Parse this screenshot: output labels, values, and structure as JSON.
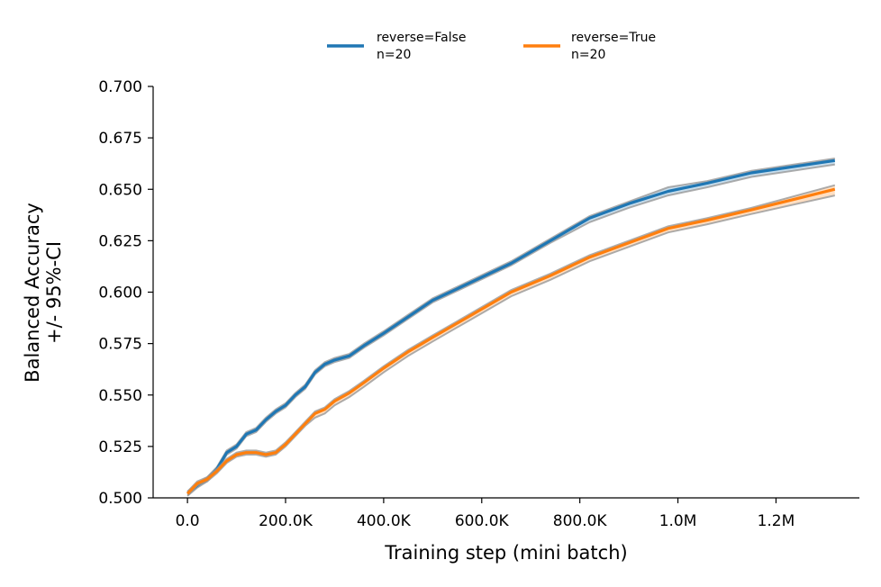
{
  "chart_data": {
    "type": "line",
    "xlabel": "Training step (mini batch)",
    "ylabel_lines": [
      "Balanced Accuracy",
      "+/- 95%-CI"
    ],
    "xlim": [
      -70000,
      1370000
    ],
    "ylim": [
      0.5,
      0.7
    ],
    "xticks": [
      0,
      200000,
      400000,
      600000,
      800000,
      1000000,
      1200000
    ],
    "xtick_labels": [
      "0.0",
      "200.0K",
      "400.0K",
      "600.0K",
      "800.0K",
      "1.0M",
      "1.2M"
    ],
    "yticks": [
      0.5,
      0.525,
      0.55,
      0.575,
      0.6,
      0.625,
      0.65,
      0.675,
      0.7
    ],
    "ytick_labels": [
      "0.500",
      "0.525",
      "0.550",
      "0.575",
      "0.600",
      "0.625",
      "0.650",
      "0.675",
      "0.700"
    ],
    "ci_color": "#999999",
    "legend": {
      "position": "top-center",
      "columns": 2
    },
    "series": [
      {
        "name": "reverse=False",
        "legend_label_lines": [
          "reverse=False",
          "n=20"
        ],
        "color": "#1f77b4",
        "x": [
          0,
          20000,
          40000,
          60000,
          80000,
          100000,
          120000,
          140000,
          160000,
          180000,
          200000,
          220000,
          240000,
          260000,
          280000,
          300000,
          330000,
          360000,
          400000,
          450000,
          500000,
          580000,
          660000,
          740000,
          820000,
          900000,
          980000,
          1060000,
          1150000,
          1320000
        ],
        "values": [
          0.502,
          0.506,
          0.509,
          0.514,
          0.522,
          0.525,
          0.531,
          0.533,
          0.538,
          0.542,
          0.545,
          0.55,
          0.554,
          0.561,
          0.565,
          0.567,
          0.569,
          0.574,
          0.58,
          0.588,
          0.596,
          0.605,
          0.614,
          0.625,
          0.636,
          0.643,
          0.649,
          0.653,
          0.658,
          0.664
        ],
        "ci_low": [
          0.501,
          0.505,
          0.508,
          0.513,
          0.521,
          0.524,
          0.53,
          0.532,
          0.537,
          0.541,
          0.544,
          0.549,
          0.553,
          0.56,
          0.564,
          0.566,
          0.568,
          0.573,
          0.579,
          0.587,
          0.595,
          0.604,
          0.613,
          0.624,
          0.634,
          0.641,
          0.647,
          0.651,
          0.656,
          0.662
        ],
        "ci_high": [
          0.503,
          0.507,
          0.51,
          0.515,
          0.523,
          0.526,
          0.532,
          0.534,
          0.539,
          0.543,
          0.546,
          0.551,
          0.555,
          0.562,
          0.566,
          0.568,
          0.57,
          0.575,
          0.581,
          0.589,
          0.597,
          0.606,
          0.615,
          0.626,
          0.637,
          0.644,
          0.651,
          0.654,
          0.659,
          0.665
        ]
      },
      {
        "name": "reverse=True",
        "legend_label_lines": [
          "reverse=True",
          "n=20"
        ],
        "color": "#ff7f0e",
        "x": [
          0,
          20000,
          40000,
          60000,
          80000,
          100000,
          120000,
          140000,
          160000,
          180000,
          200000,
          220000,
          240000,
          260000,
          280000,
          300000,
          330000,
          360000,
          400000,
          450000,
          500000,
          580000,
          660000,
          740000,
          820000,
          900000,
          980000,
          1060000,
          1150000,
          1320000
        ],
        "values": [
          0.502,
          0.507,
          0.509,
          0.513,
          0.518,
          0.521,
          0.522,
          0.522,
          0.521,
          0.522,
          0.526,
          0.531,
          0.536,
          0.541,
          0.543,
          0.547,
          0.551,
          0.556,
          0.563,
          0.571,
          0.578,
          0.589,
          0.6,
          0.608,
          0.617,
          0.624,
          0.631,
          0.635,
          0.64,
          0.65
        ],
        "ci_low": [
          0.501,
          0.506,
          0.508,
          0.512,
          0.517,
          0.52,
          0.521,
          0.521,
          0.52,
          0.521,
          0.525,
          0.53,
          0.535,
          0.539,
          0.541,
          0.545,
          0.549,
          0.554,
          0.561,
          0.569,
          0.576,
          0.587,
          0.598,
          0.606,
          0.615,
          0.622,
          0.629,
          0.633,
          0.638,
          0.647
        ],
        "ci_high": [
          0.503,
          0.508,
          0.51,
          0.514,
          0.519,
          0.522,
          0.523,
          0.523,
          0.522,
          0.523,
          0.527,
          0.532,
          0.537,
          0.542,
          0.544,
          0.548,
          0.552,
          0.557,
          0.564,
          0.572,
          0.579,
          0.59,
          0.601,
          0.609,
          0.618,
          0.625,
          0.632,
          0.636,
          0.641,
          0.652
        ]
      }
    ]
  }
}
